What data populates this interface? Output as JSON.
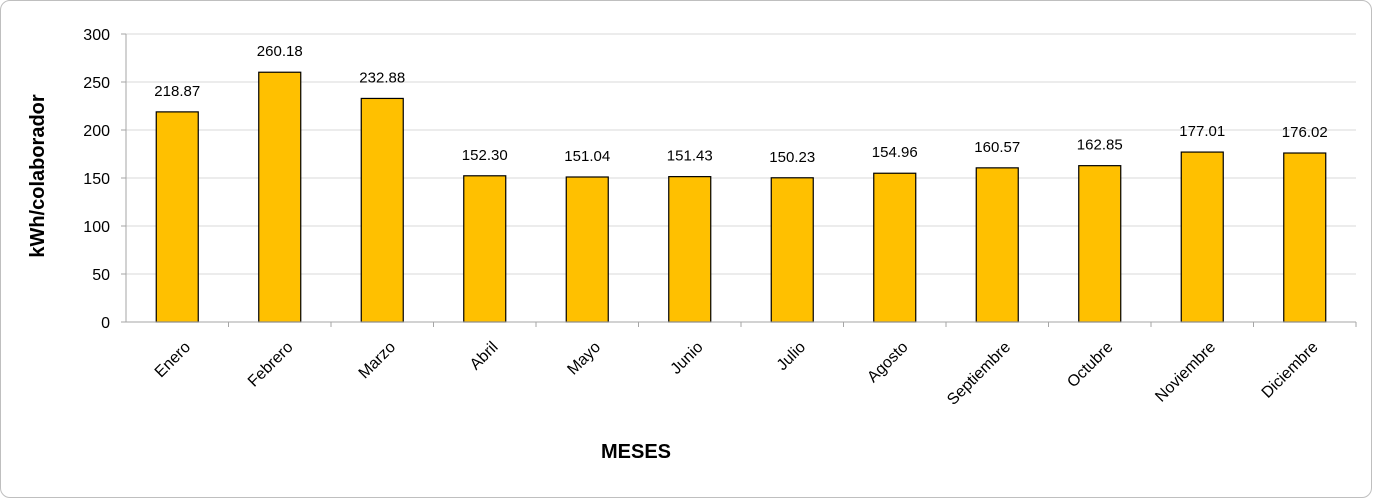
{
  "chart_data": {
    "type": "bar",
    "categories": [
      "Enero",
      "Febrero",
      "Marzo",
      "Abril",
      "Mayo",
      "Junio",
      "Julio",
      "Agosto",
      "Septiembre",
      "Octubre",
      "Noviembre",
      "Diciembre"
    ],
    "values": [
      218.87,
      260.18,
      232.88,
      152.3,
      151.04,
      151.43,
      150.23,
      154.96,
      160.57,
      162.85,
      177.01,
      176.02
    ],
    "data_labels": [
      "218.87",
      "260.18",
      "232.88",
      "152.30",
      "151.04",
      "151.43",
      "150.23",
      "154.96",
      "160.57",
      "162.85",
      "177.01",
      "176.02"
    ],
    "title": "",
    "xlabel": "MESES",
    "ylabel": "kWh/colaborador",
    "ylim": [
      0,
      300
    ],
    "yticks": [
      0,
      50,
      100,
      150,
      200,
      250,
      300
    ],
    "grid": true,
    "legend": "none",
    "bar_color": "#FFC000",
    "bar_edge_color": "#000000",
    "grid_color": "#d9d9d9"
  }
}
